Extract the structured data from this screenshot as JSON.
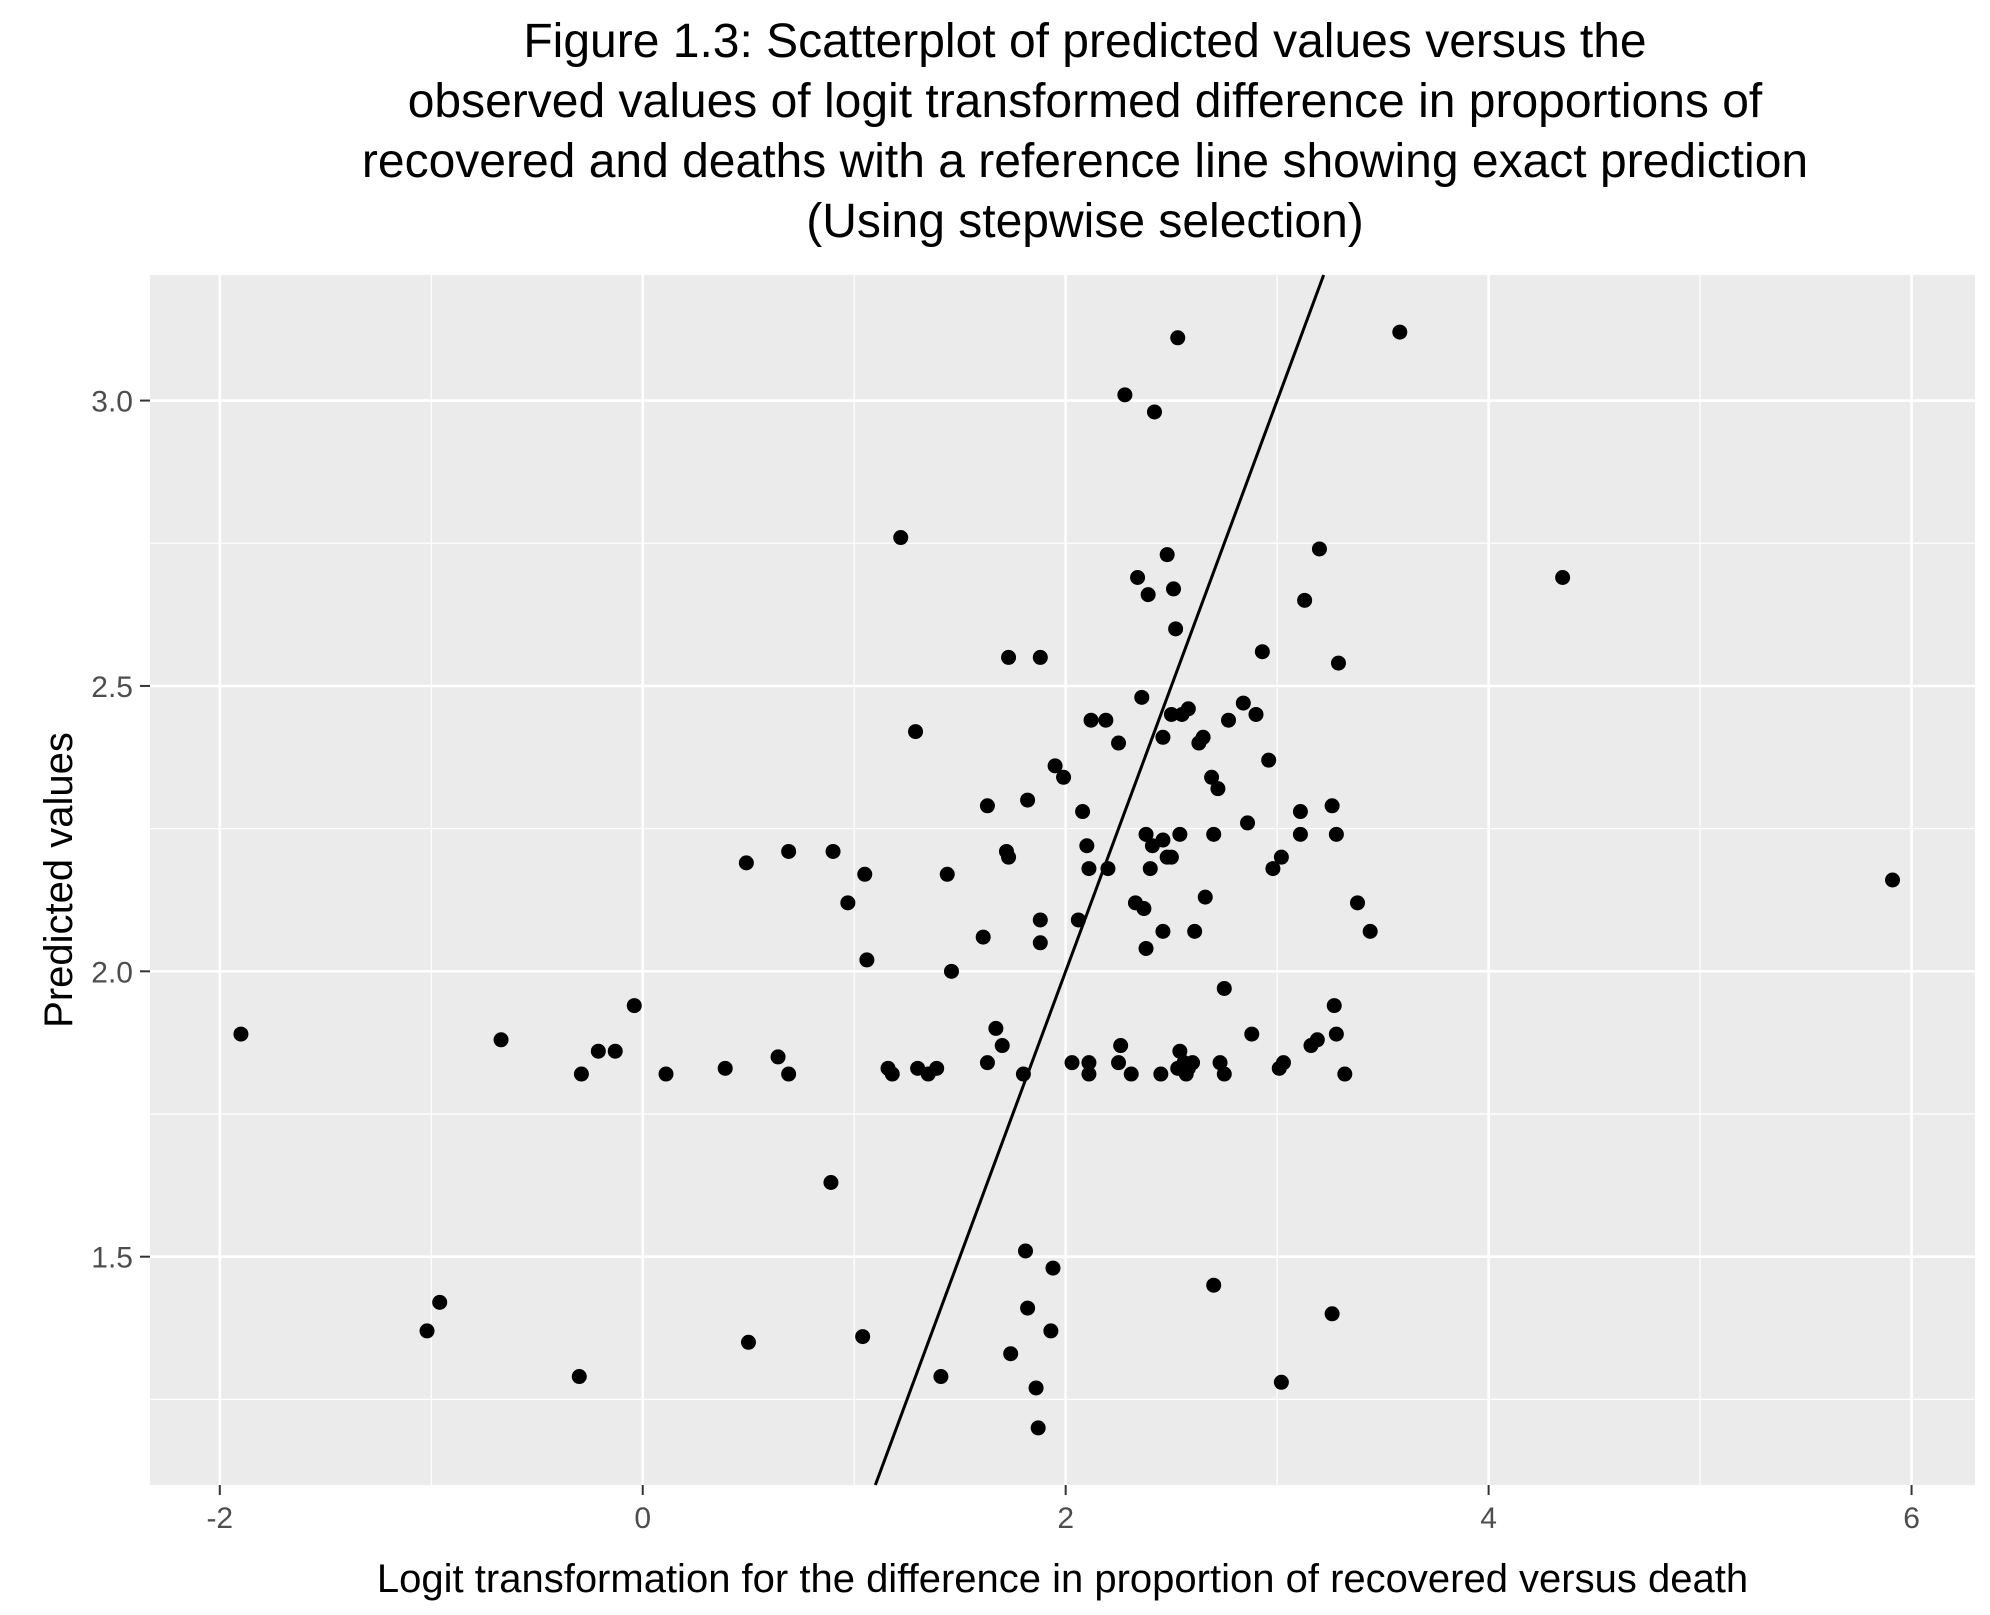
{
  "chart_data": {
    "type": "scatter",
    "title": [
      "Figure 1.3: Scatterplot of predicted values versus the",
      "observed values of logit transformed difference in proportions of",
      "recovered and deaths with a reference line showing exact prediction",
      "(Using stepwise selection)"
    ],
    "xlabel": "Logit transformation for the difference in proportion of recovered versus death",
    "ylabel": "Predicted values",
    "xlim": [
      -2.33,
      6.3
    ],
    "ylim": [
      1.1,
      3.22
    ],
    "x_ticks": [
      -2,
      0,
      2,
      4,
      6
    ],
    "x_tick_labels": [
      "-2",
      "0",
      "2",
      "4",
      "6"
    ],
    "y_ticks": [
      1.5,
      2.0,
      2.5,
      3.0
    ],
    "y_tick_labels": [
      "1.5",
      "2.0",
      "2.5",
      "3.0"
    ],
    "reference_line": {
      "intercept": 0,
      "slope": 1
    },
    "grid": true,
    "colors": {
      "panel_background": "#ebebeb",
      "grid": "#ffffff",
      "points": "#000000",
      "line": "#000000"
    },
    "points": [
      {
        "x": -1.9,
        "y": 1.89
      },
      {
        "x": -0.67,
        "y": 1.88
      },
      {
        "x": -1.02,
        "y": 1.37
      },
      {
        "x": -0.96,
        "y": 1.42
      },
      {
        "x": -0.29,
        "y": 1.82
      },
      {
        "x": -0.21,
        "y": 1.86
      },
      {
        "x": -0.13,
        "y": 1.86
      },
      {
        "x": -0.04,
        "y": 1.94
      },
      {
        "x": -0.3,
        "y": 1.29
      },
      {
        "x": 0.11,
        "y": 1.82
      },
      {
        "x": 0.39,
        "y": 1.83
      },
      {
        "x": 0.49,
        "y": 2.19
      },
      {
        "x": 0.5,
        "y": 1.35
      },
      {
        "x": 0.64,
        "y": 1.85
      },
      {
        "x": 0.69,
        "y": 1.82
      },
      {
        "x": 0.69,
        "y": 2.21
      },
      {
        "x": 0.9,
        "y": 2.21
      },
      {
        "x": 0.89,
        "y": 1.63
      },
      {
        "x": 0.97,
        "y": 2.12
      },
      {
        "x": 1.05,
        "y": 2.17
      },
      {
        "x": 1.06,
        "y": 2.02
      },
      {
        "x": 1.04,
        "y": 1.36
      },
      {
        "x": 1.16,
        "y": 1.83
      },
      {
        "x": 1.18,
        "y": 1.82
      },
      {
        "x": 1.22,
        "y": 2.76
      },
      {
        "x": 1.29,
        "y": 2.42
      },
      {
        "x": 1.3,
        "y": 1.83
      },
      {
        "x": 1.35,
        "y": 1.82
      },
      {
        "x": 1.39,
        "y": 1.83
      },
      {
        "x": 1.41,
        "y": 1.29
      },
      {
        "x": 1.44,
        "y": 2.17
      },
      {
        "x": 1.46,
        "y": 2.0
      },
      {
        "x": 1.61,
        "y": 2.06
      },
      {
        "x": 1.63,
        "y": 1.84
      },
      {
        "x": 1.63,
        "y": 2.29
      },
      {
        "x": 1.67,
        "y": 1.9
      },
      {
        "x": 1.7,
        "y": 1.87
      },
      {
        "x": 1.72,
        "y": 2.21
      },
      {
        "x": 1.73,
        "y": 2.2
      },
      {
        "x": 1.73,
        "y": 2.55
      },
      {
        "x": 1.74,
        "y": 1.33
      },
      {
        "x": 1.8,
        "y": 1.82
      },
      {
        "x": 1.81,
        "y": 1.51
      },
      {
        "x": 1.82,
        "y": 1.41
      },
      {
        "x": 1.82,
        "y": 2.3
      },
      {
        "x": 1.86,
        "y": 1.27
      },
      {
        "x": 1.87,
        "y": 1.2
      },
      {
        "x": 1.88,
        "y": 2.09
      },
      {
        "x": 1.88,
        "y": 2.05
      },
      {
        "x": 1.88,
        "y": 2.55
      },
      {
        "x": 1.93,
        "y": 1.37
      },
      {
        "x": 1.94,
        "y": 1.48
      },
      {
        "x": 1.95,
        "y": 2.36
      },
      {
        "x": 1.99,
        "y": 2.34
      },
      {
        "x": 2.03,
        "y": 1.84
      },
      {
        "x": 2.06,
        "y": 2.09
      },
      {
        "x": 2.08,
        "y": 2.28
      },
      {
        "x": 2.1,
        "y": 2.22
      },
      {
        "x": 2.11,
        "y": 2.18
      },
      {
        "x": 2.11,
        "y": 1.84
      },
      {
        "x": 2.11,
        "y": 1.82
      },
      {
        "x": 2.12,
        "y": 2.44
      },
      {
        "x": 2.19,
        "y": 2.44
      },
      {
        "x": 2.2,
        "y": 2.18
      },
      {
        "x": 2.25,
        "y": 2.4
      },
      {
        "x": 2.25,
        "y": 1.84
      },
      {
        "x": 2.26,
        "y": 1.87
      },
      {
        "x": 2.28,
        "y": 3.01
      },
      {
        "x": 2.31,
        "y": 1.82
      },
      {
        "x": 2.33,
        "y": 2.12
      },
      {
        "x": 2.34,
        "y": 2.69
      },
      {
        "x": 2.36,
        "y": 2.48
      },
      {
        "x": 2.37,
        "y": 2.11
      },
      {
        "x": 2.38,
        "y": 2.04
      },
      {
        "x": 2.38,
        "y": 2.24
      },
      {
        "x": 2.39,
        "y": 2.66
      },
      {
        "x": 2.4,
        "y": 2.18
      },
      {
        "x": 2.41,
        "y": 2.22
      },
      {
        "x": 2.42,
        "y": 2.98
      },
      {
        "x": 2.45,
        "y": 1.82
      },
      {
        "x": 2.46,
        "y": 2.23
      },
      {
        "x": 2.46,
        "y": 2.07
      },
      {
        "x": 2.46,
        "y": 2.41
      },
      {
        "x": 2.48,
        "y": 2.73
      },
      {
        "x": 2.48,
        "y": 2.2
      },
      {
        "x": 2.5,
        "y": 2.45
      },
      {
        "x": 2.5,
        "y": 2.2
      },
      {
        "x": 2.51,
        "y": 2.67
      },
      {
        "x": 2.52,
        "y": 2.6
      },
      {
        "x": 2.53,
        "y": 3.11
      },
      {
        "x": 2.53,
        "y": 1.83
      },
      {
        "x": 2.54,
        "y": 2.24
      },
      {
        "x": 2.54,
        "y": 1.86
      },
      {
        "x": 2.55,
        "y": 2.45
      },
      {
        "x": 2.56,
        "y": 1.84
      },
      {
        "x": 2.57,
        "y": 1.82
      },
      {
        "x": 2.58,
        "y": 2.46
      },
      {
        "x": 2.58,
        "y": 1.83
      },
      {
        "x": 2.6,
        "y": 1.84
      },
      {
        "x": 2.61,
        "y": 2.07
      },
      {
        "x": 2.63,
        "y": 2.4
      },
      {
        "x": 2.65,
        "y": 2.41
      },
      {
        "x": 2.66,
        "y": 2.13
      },
      {
        "x": 2.69,
        "y": 2.34
      },
      {
        "x": 2.7,
        "y": 2.24
      },
      {
        "x": 2.7,
        "y": 1.45
      },
      {
        "x": 2.72,
        "y": 2.32
      },
      {
        "x": 2.73,
        "y": 1.84
      },
      {
        "x": 2.75,
        "y": 1.97
      },
      {
        "x": 2.75,
        "y": 1.82
      },
      {
        "x": 2.77,
        "y": 2.44
      },
      {
        "x": 2.84,
        "y": 2.47
      },
      {
        "x": 2.86,
        "y": 2.26
      },
      {
        "x": 2.88,
        "y": 1.89
      },
      {
        "x": 2.9,
        "y": 2.45
      },
      {
        "x": 2.93,
        "y": 2.56
      },
      {
        "x": 2.96,
        "y": 2.37
      },
      {
        "x": 2.98,
        "y": 2.18
      },
      {
        "x": 3.01,
        "y": 1.83
      },
      {
        "x": 3.02,
        "y": 2.2
      },
      {
        "x": 3.02,
        "y": 1.28
      },
      {
        "x": 3.03,
        "y": 1.84
      },
      {
        "x": 3.11,
        "y": 2.24
      },
      {
        "x": 3.11,
        "y": 2.28
      },
      {
        "x": 3.13,
        "y": 2.65
      },
      {
        "x": 3.16,
        "y": 1.87
      },
      {
        "x": 3.19,
        "y": 1.88
      },
      {
        "x": 3.2,
        "y": 2.74
      },
      {
        "x": 3.26,
        "y": 2.29
      },
      {
        "x": 3.26,
        "y": 1.4
      },
      {
        "x": 3.27,
        "y": 1.94
      },
      {
        "x": 3.28,
        "y": 2.24
      },
      {
        "x": 3.28,
        "y": 1.89
      },
      {
        "x": 3.29,
        "y": 2.54
      },
      {
        "x": 3.32,
        "y": 1.82
      },
      {
        "x": 3.38,
        "y": 2.12
      },
      {
        "x": 3.44,
        "y": 2.07
      },
      {
        "x": 3.58,
        "y": 3.12
      },
      {
        "x": 4.35,
        "y": 2.69
      },
      {
        "x": 5.91,
        "y": 2.16
      }
    ]
  }
}
